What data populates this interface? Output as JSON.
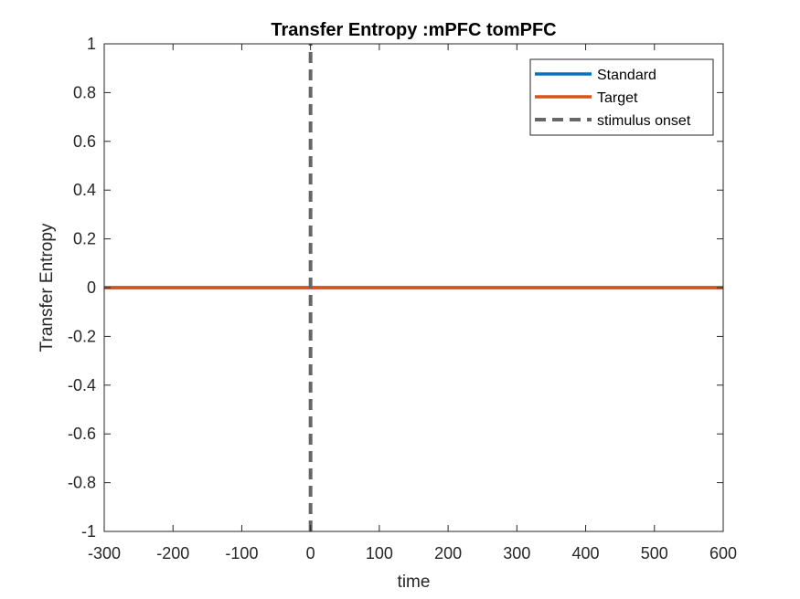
{
  "chart_data": {
    "type": "line",
    "title": "Transfer Entropy :mPFC tomPFC",
    "xlabel": "time",
    "ylabel": "Transfer Entropy",
    "xlim": [
      -300,
      600
    ],
    "ylim": [
      -1,
      1
    ],
    "xticks": [
      -300,
      -200,
      -100,
      0,
      100,
      200,
      300,
      400,
      500,
      600
    ],
    "yticks": [
      -1,
      -0.8,
      -0.6,
      -0.4,
      -0.2,
      0,
      0.2,
      0.4,
      0.6,
      0.8,
      1
    ],
    "xtick_labels": [
      "-300",
      "-200",
      "-100",
      "0",
      "100",
      "200",
      "300",
      "400",
      "500",
      "600"
    ],
    "ytick_labels": [
      "-1",
      "-0.8",
      "-0.6",
      "-0.4",
      "-0.2",
      "0",
      "0.2",
      "0.4",
      "0.6",
      "0.8",
      "1"
    ],
    "grid": false,
    "legend_position": "top-right",
    "series": [
      {
        "name": "Standard",
        "color": "#0072BD",
        "style": "solid",
        "x": [
          -300,
          600
        ],
        "y": [
          0,
          0
        ]
      },
      {
        "name": "Target",
        "color": "#D95319",
        "style": "solid",
        "x": [
          -300,
          600
        ],
        "y": [
          0,
          0
        ]
      },
      {
        "name": "stimulus onset",
        "color": "#666666",
        "style": "dashed",
        "x": [
          0,
          0
        ],
        "y": [
          -1,
          1
        ]
      }
    ]
  }
}
